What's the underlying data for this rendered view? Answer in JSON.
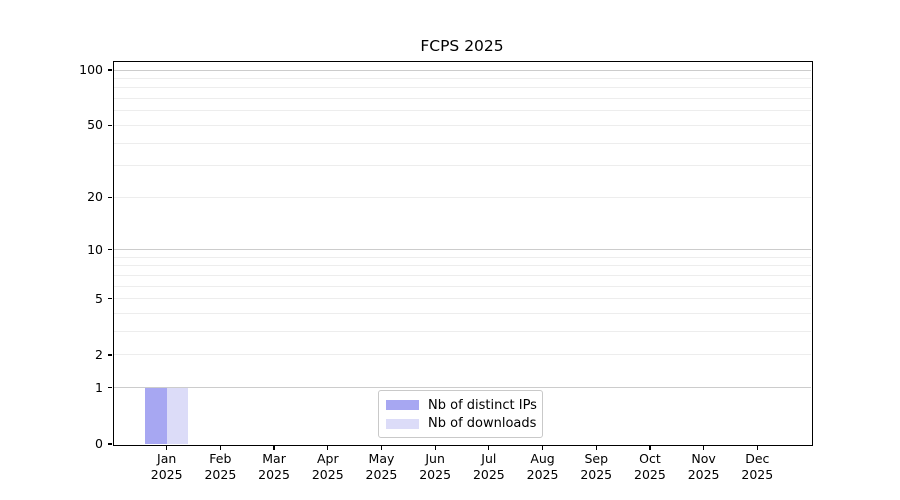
{
  "chart_data": {
    "type": "bar",
    "title": "FCPS 2025",
    "categories": [
      "Jan",
      "Feb",
      "Mar",
      "Apr",
      "May",
      "Jun",
      "Jul",
      "Aug",
      "Sep",
      "Oct",
      "Nov",
      "Dec"
    ],
    "category_year": "2025",
    "series": [
      {
        "name": "Nb of distinct IPs",
        "color": "#a7a7f2",
        "values": [
          1,
          0,
          0,
          0,
          0,
          0,
          0,
          0,
          0,
          0,
          0,
          0
        ]
      },
      {
        "name": "Nb of downloads",
        "color": "#dcdcf8",
        "values": [
          1,
          0,
          0,
          0,
          0,
          0,
          0,
          0,
          0,
          0,
          0,
          0
        ]
      }
    ],
    "y_axis": {
      "scale": "log1p",
      "tick_labels": [
        0,
        1,
        2,
        5,
        10,
        20,
        50,
        100
      ],
      "major_gridlines": [
        1,
        10,
        100
      ],
      "minor_gridlines": [
        2,
        3,
        4,
        5,
        6,
        7,
        8,
        9,
        20,
        30,
        40,
        50,
        60,
        70,
        80,
        90
      ],
      "top_value": 112
    },
    "x_axis": {
      "months_shown": 12
    },
    "legend": {
      "position": "lower-center"
    },
    "colors": {
      "grid_major": "#cccccc",
      "grid_minor": "#ededed",
      "axis": "#000000",
      "text": "#000000",
      "background": "#ffffff"
    }
  }
}
